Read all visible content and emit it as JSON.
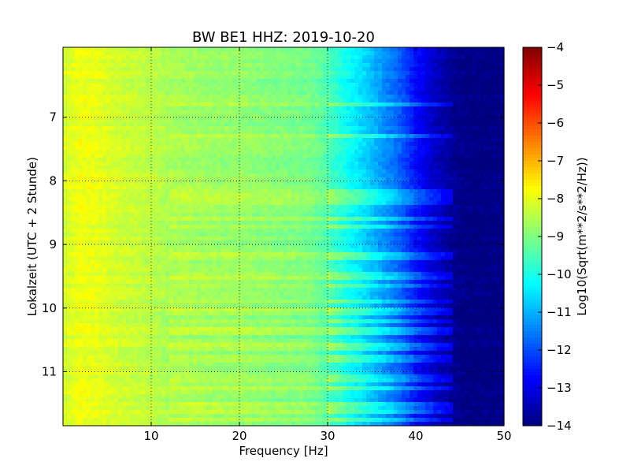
{
  "chart_data": {
    "type": "heatmap",
    "title": "BW BE1 HHZ: 2019-10-20",
    "xlabel": "Frequency [Hz]",
    "ylabel": "Lokalzeit (UTC + 2 Stunde)",
    "xlim": [
      0,
      50
    ],
    "ylim": [
      5.9,
      11.85
    ],
    "y_inverted": true,
    "x_ticks": [
      10,
      20,
      30,
      40,
      50
    ],
    "y_ticks": [
      7,
      8,
      9,
      10,
      11
    ],
    "grid": true,
    "colormap": "jet",
    "colorbar": {
      "label": "Log10(Sqrt(m**2/s**2/Hz))",
      "range": [
        -14,
        -4
      ],
      "ticks": [
        -14,
        -13,
        -12,
        -11,
        -10,
        -9,
        -8,
        -7,
        -6,
        -5,
        -4
      ]
    },
    "frequency_profile": {
      "frequency_hz": [
        0,
        2,
        4,
        6,
        8,
        10,
        12,
        15,
        18,
        20,
        22,
        25,
        28,
        30,
        32,
        34,
        36,
        38,
        40,
        42,
        44,
        46,
        50
      ],
      "log10_amplitude": [
        -8.2,
        -7.9,
        -8.0,
        -8.2,
        -8.3,
        -8.4,
        -8.6,
        -8.7,
        -8.8,
        -8.8,
        -8.9,
        -9.0,
        -9.1,
        -9.5,
        -10.1,
        -10.6,
        -11.2,
        -11.8,
        -12.6,
        -13.3,
        -13.8,
        -14.0,
        -14.0
      ]
    },
    "bright_bands_hours": [
      6.8,
      7.3,
      8.15,
      8.25,
      8.35,
      8.6,
      8.72,
      9.2,
      9.5,
      9.65,
      9.9,
      10.05,
      10.2,
      10.35,
      10.62,
      10.8,
      11.1,
      11.25,
      11.5,
      11.62,
      11.75
    ]
  }
}
